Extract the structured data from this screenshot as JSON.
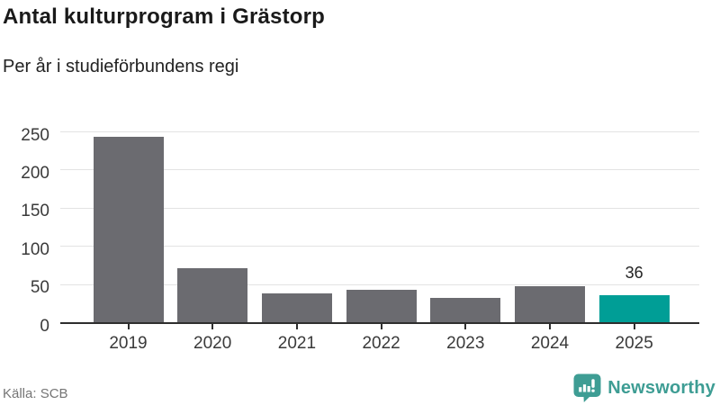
{
  "header": {
    "title": "Antal kulturprogram i Grästorp",
    "subtitle": "Per år i studieförbundens regi"
  },
  "chart_data": {
    "type": "bar",
    "title": "Antal kulturprogram i Grästorp",
    "subtitle": "Per år i studieförbundens regi",
    "categories": [
      "2019",
      "2020",
      "2021",
      "2022",
      "2023",
      "2024",
      "2025"
    ],
    "values": [
      243,
      71,
      38,
      42,
      32,
      47,
      36
    ],
    "xlabel": "",
    "ylabel": "",
    "ylim": [
      0,
      250
    ],
    "yticks": [
      0,
      50,
      100,
      150,
      200,
      250
    ],
    "grid": true,
    "legend_position": "none",
    "bar_color": "#6b6b70",
    "axis_color": "#2e2e2e",
    "gridline_color": "#e3e3e3",
    "highlight": {
      "index": 6,
      "category": "2025",
      "value": 36,
      "label": "36",
      "color": "#009e96"
    }
  },
  "footer": {
    "source": "Källa: SCB",
    "brand": {
      "name": "Newsworthy",
      "color": "#3e9d94"
    }
  }
}
